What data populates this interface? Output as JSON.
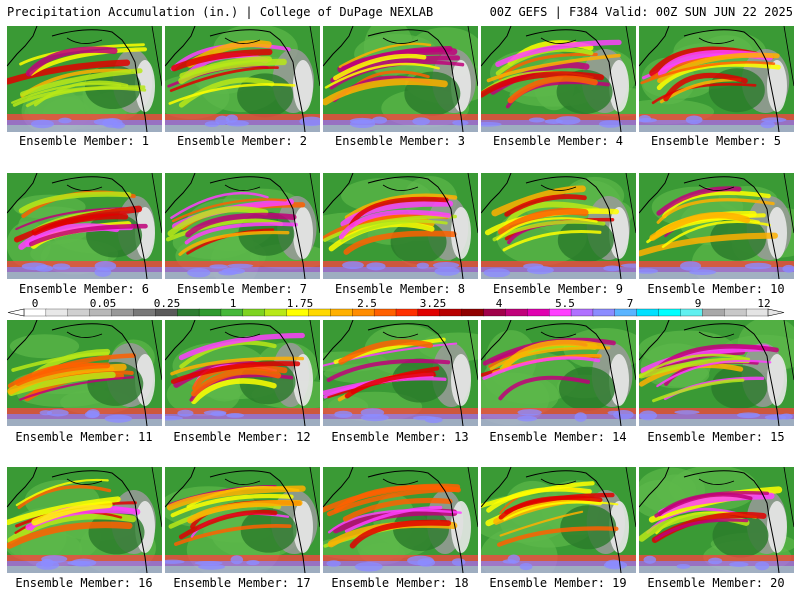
{
  "header": {
    "left": "Precipitation Accumulation (in.) | College of DuPage NEXLAB",
    "right": "00Z GEFS | F384 Valid: 00Z SUN JUN 22 2025"
  },
  "caption_prefix": "Ensemble Member: ",
  "members": [
    {
      "number": "1"
    },
    {
      "number": "2"
    },
    {
      "number": "3"
    },
    {
      "number": "4"
    },
    {
      "number": "5"
    },
    {
      "number": "6"
    },
    {
      "number": "7"
    },
    {
      "number": "8"
    },
    {
      "number": "9"
    },
    {
      "number": "10"
    },
    {
      "number": "11"
    },
    {
      "number": "12"
    },
    {
      "number": "13"
    },
    {
      "number": "14"
    },
    {
      "number": "15"
    },
    {
      "number": "16"
    },
    {
      "number": "17"
    },
    {
      "number": "18"
    },
    {
      "number": "19"
    },
    {
      "number": "20"
    }
  ],
  "color_scale": {
    "labels": [
      "0",
      "0.05",
      "0.25",
      "1",
      "1.75",
      "2.5",
      "3.25",
      "4",
      "5.5",
      "7",
      "9",
      "12"
    ],
    "colors": [
      "#ffffff",
      "#e8e8e8",
      "#d0d0d0",
      "#b8b8b8",
      "#989898",
      "#787878",
      "#5a5a5a",
      "#2e7d32",
      "#2f9a2f",
      "#46b83a",
      "#7ed321",
      "#b8e818",
      "#ffff00",
      "#ffd800",
      "#ffb000",
      "#ff8c00",
      "#ff6000",
      "#ff3000",
      "#e00000",
      "#b80000",
      "#900000",
      "#a0004a",
      "#c0007a",
      "#e000b0",
      "#ff40ff",
      "#b070ff",
      "#8c8cff",
      "#5ab4ff",
      "#00e0ff",
      "#00ffff",
      "#60f0f0",
      "#a8a8a8",
      "#c8c8c8",
      "#e4e4e4"
    ]
  }
}
